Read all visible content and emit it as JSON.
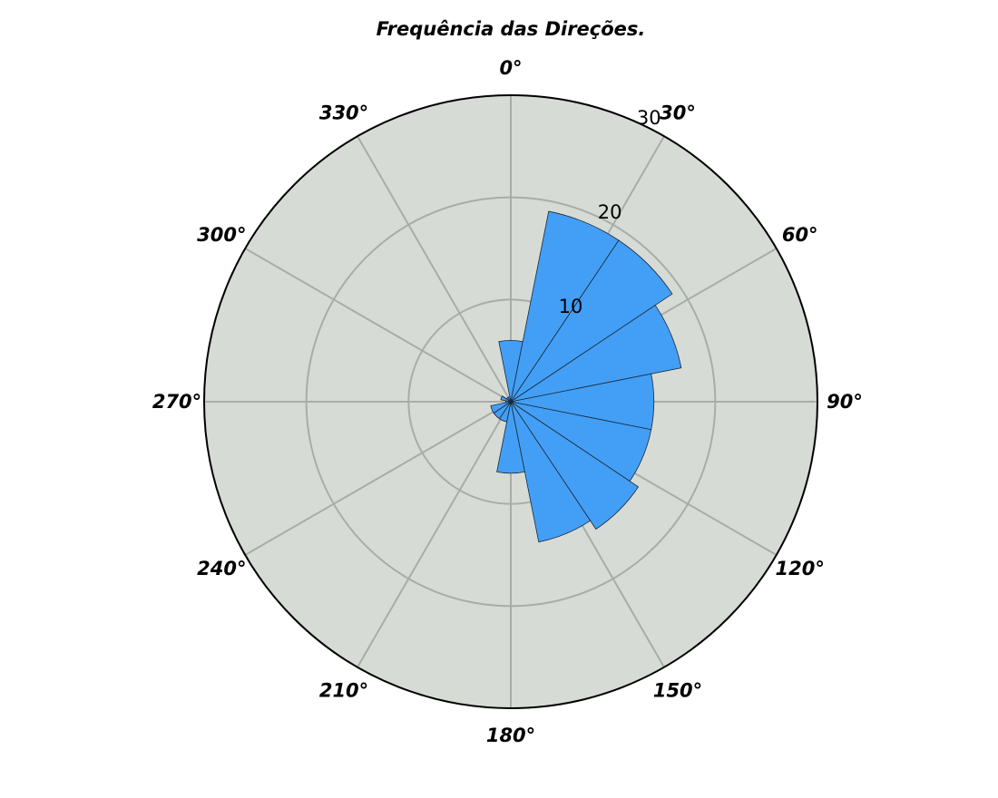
{
  "chart_data": {
    "type": "bar",
    "subtype": "polar-rose",
    "title": "Frequência das Direções.",
    "angle_ticks": [
      "0°",
      "30°",
      "60°",
      "90°",
      "120°",
      "150°",
      "180°",
      "210°",
      "240°",
      "270°",
      "300°",
      "330°"
    ],
    "radial_ticks": [
      10,
      20,
      30
    ],
    "rmax": 30,
    "direction": "clockwise",
    "zero_location": "north",
    "grid": true,
    "bar_width_deg": 22.5,
    "sectors": [
      {
        "direction": 0,
        "value": 6
      },
      {
        "direction": 22.5,
        "value": 19
      },
      {
        "direction": 45,
        "value": 19
      },
      {
        "direction": 67.5,
        "value": 17
      },
      {
        "direction": 90,
        "value": 14
      },
      {
        "direction": 112.5,
        "value": 14
      },
      {
        "direction": 135,
        "value": 15
      },
      {
        "direction": 157.5,
        "value": 14
      },
      {
        "direction": 180,
        "value": 7
      },
      {
        "direction": 202.5,
        "value": 2
      },
      {
        "direction": 225,
        "value": 2
      },
      {
        "direction": 247.5,
        "value": 2
      },
      {
        "direction": 270,
        "value": 0.5
      },
      {
        "direction": 292.5,
        "value": 1
      },
      {
        "direction": 315,
        "value": 0.5
      },
      {
        "direction": 337.5,
        "value": 0.5
      }
    ],
    "colors": {
      "bar": "#439ff5",
      "bar_edge": "#1a2a3a",
      "background": "#d7dbd6",
      "grid": "#a9aca8",
      "frame": "#000000"
    }
  }
}
